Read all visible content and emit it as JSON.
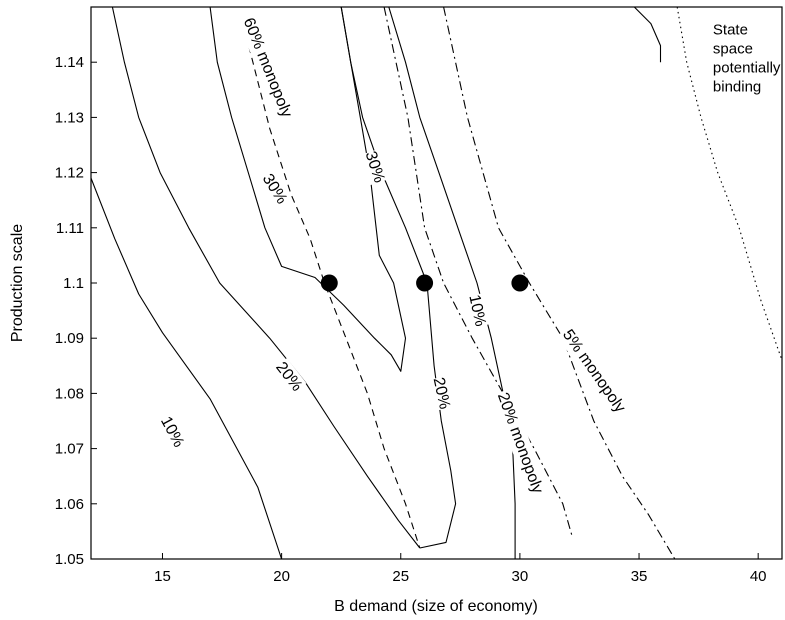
{
  "chart_data": {
    "type": "line",
    "title": "",
    "xlabel": "B demand (size of economy)",
    "ylabel": "Production scale",
    "xlim": [
      12,
      41
    ],
    "ylim": [
      1.05,
      1.15
    ],
    "x_ticks": [
      "15",
      "20",
      "25",
      "30",
      "35",
      "40"
    ],
    "y_ticks": [
      "1.05",
      "1.06",
      "1.07",
      "1.08",
      "1.09",
      "1.1",
      "1.11",
      "1.12",
      "1.13",
      "1.14"
    ],
    "grid": false,
    "legend": "none",
    "series": [
      {
        "name": "10%",
        "style": "solid",
        "points": [
          [
            12.0,
            1.119
          ],
          [
            13.0,
            1.108
          ],
          [
            14.0,
            1.098
          ],
          [
            15.0,
            1.091
          ],
          [
            16.0,
            1.085
          ],
          [
            17.0,
            1.079
          ],
          [
            18.0,
            1.071
          ],
          [
            19.0,
            1.063
          ],
          [
            20.0,
            1.05
          ]
        ]
      },
      {
        "name": "20%",
        "style": "solid",
        "points": [
          [
            12.9,
            1.15
          ],
          [
            13.4,
            1.14
          ],
          [
            14.0,
            1.13
          ],
          [
            14.9,
            1.12
          ],
          [
            16.1,
            1.11
          ],
          [
            17.4,
            1.1
          ],
          [
            19.5,
            1.09
          ],
          [
            21.0,
            1.082
          ],
          [
            22.2,
            1.074
          ],
          [
            23.6,
            1.065
          ],
          [
            24.9,
            1.057
          ],
          [
            25.8,
            1.052
          ]
        ]
      },
      {
        "name": "20%",
        "style": "solid",
        "points": [
          [
            25.8,
            1.052
          ],
          [
            26.9,
            1.053
          ],
          [
            27.3,
            1.06
          ],
          [
            27.1,
            1.066
          ],
          [
            26.7,
            1.075
          ],
          [
            26.4,
            1.085
          ],
          [
            26.1,
            1.1
          ],
          [
            25.2,
            1.11
          ],
          [
            24.2,
            1.12
          ],
          [
            23.4,
            1.13
          ],
          [
            22.9,
            1.14
          ],
          [
            22.5,
            1.15
          ]
        ]
      },
      {
        "name": "30%",
        "style": "solid",
        "points": [
          [
            17.0,
            1.15
          ],
          [
            17.3,
            1.14
          ],
          [
            17.9,
            1.13
          ],
          [
            18.6,
            1.12
          ],
          [
            19.3,
            1.11
          ],
          [
            20.0,
            1.103
          ],
          [
            21.4,
            1.101
          ],
          [
            22.6,
            1.096
          ],
          [
            23.9,
            1.09
          ],
          [
            24.6,
            1.087
          ],
          [
            25.0,
            1.084
          ],
          [
            25.2,
            1.09
          ],
          [
            24.7,
            1.1
          ],
          [
            24.1,
            1.105
          ],
          [
            23.7,
            1.12
          ],
          [
            23.3,
            1.13
          ],
          [
            22.9,
            1.14
          ],
          [
            22.5,
            1.15
          ]
        ]
      },
      {
        "name": "10%",
        "style": "solid",
        "points": [
          [
            24.5,
            1.15
          ],
          [
            25.2,
            1.14
          ],
          [
            25.8,
            1.13
          ],
          [
            26.6,
            1.12
          ],
          [
            27.4,
            1.11
          ],
          [
            28.2,
            1.1
          ],
          [
            28.8,
            1.09
          ],
          [
            29.3,
            1.08
          ],
          [
            29.7,
            1.07
          ],
          [
            29.8,
            1.06
          ],
          [
            29.8,
            1.05
          ]
        ]
      },
      {
        "name": "",
        "style": "solid",
        "points": [
          [
            34.8,
            1.15
          ],
          [
            35.5,
            1.147
          ],
          [
            35.9,
            1.143
          ],
          [
            35.9,
            1.14
          ]
        ]
      },
      {
        "name": "60% monopoly",
        "style": "dashed",
        "points": [
          [
            18.5,
            1.145
          ],
          [
            19.5,
            1.128
          ],
          [
            20.4,
            1.116
          ],
          [
            21.2,
            1.108
          ],
          [
            21.8,
            1.1
          ],
          [
            22.7,
            1.09
          ],
          [
            23.6,
            1.08
          ],
          [
            24.3,
            1.07
          ],
          [
            25.2,
            1.06
          ],
          [
            25.8,
            1.052
          ]
        ]
      },
      {
        "name": "20% monopoly",
        "style": "dashdot",
        "points": [
          [
            24.3,
            1.15
          ],
          [
            25.3,
            1.13
          ],
          [
            26.0,
            1.11
          ],
          [
            26.8,
            1.1
          ],
          [
            28.0,
            1.09
          ],
          [
            29.3,
            1.08
          ],
          [
            30.6,
            1.07
          ],
          [
            31.8,
            1.06
          ],
          [
            32.2,
            1.054
          ]
        ]
      },
      {
        "name": "5% monopoly",
        "style": "dashdot",
        "points": [
          [
            26.8,
            1.15
          ],
          [
            27.8,
            1.13
          ],
          [
            29.1,
            1.11
          ],
          [
            30.4,
            1.1
          ],
          [
            31.8,
            1.09
          ],
          [
            33.1,
            1.075
          ],
          [
            34.3,
            1.065
          ],
          [
            35.4,
            1.058
          ],
          [
            36.5,
            1.05
          ]
        ]
      },
      {
        "name": "State space potentially binding",
        "style": "dotted",
        "points": [
          [
            36.6,
            1.15
          ],
          [
            37.0,
            1.14
          ],
          [
            37.6,
            1.13
          ],
          [
            38.3,
            1.12
          ],
          [
            39.2,
            1.11
          ],
          [
            40.1,
            1.097
          ],
          [
            41.0,
            1.086
          ]
        ]
      }
    ],
    "markers": [
      {
        "x": 22.0,
        "y": 1.1
      },
      {
        "x": 26.0,
        "y": 1.1
      },
      {
        "x": 30.0,
        "y": 1.1
      }
    ],
    "labels": [
      {
        "text": "10%",
        "x": 15.4,
        "y": 1.073,
        "angle": 62
      },
      {
        "text": "20%",
        "x": 20.3,
        "y": 1.083,
        "angle": 52
      },
      {
        "text": "30%",
        "x": 19.7,
        "y": 1.117,
        "angle": 58
      },
      {
        "text": "30%",
        "x": 23.9,
        "y": 1.121,
        "angle": 72
      },
      {
        "text": "60% monopoly",
        "x": 19.4,
        "y": 1.139,
        "angle": 68
      },
      {
        "text": "20%",
        "x": 26.7,
        "y": 1.08,
        "angle": 78
      },
      {
        "text": "10%",
        "x": 28.2,
        "y": 1.095,
        "angle": 78
      },
      {
        "text": "20% monopoly",
        "x": 30.0,
        "y": 1.071,
        "angle": 70
      },
      {
        "text": "5% monopoly",
        "x": 33.1,
        "y": 1.084,
        "angle": 55
      }
    ],
    "annotation": {
      "lines": [
        "State",
        "space",
        "potentially",
        "binding"
      ],
      "x": 38.1,
      "y": 1.145
    }
  }
}
